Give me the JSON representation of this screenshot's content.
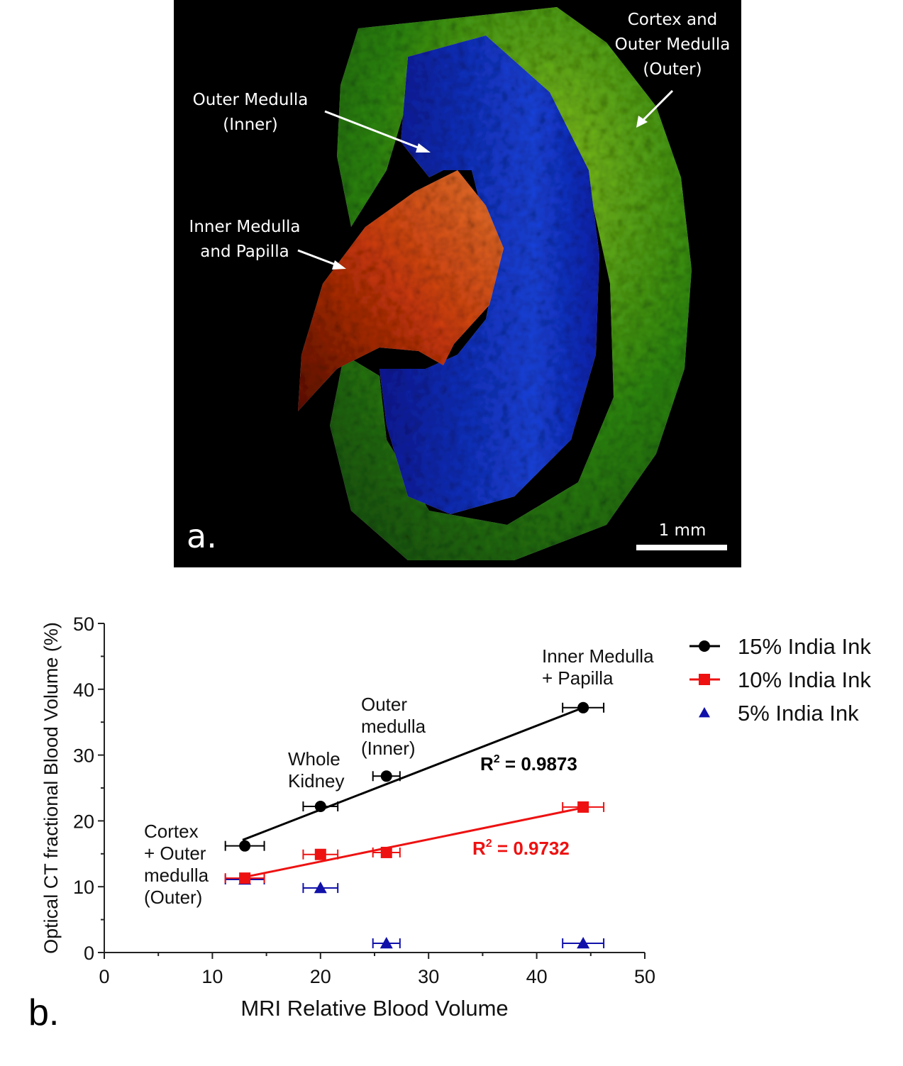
{
  "panel_a": {
    "letter": "a.",
    "scale_bar": "1 mm",
    "labels": {
      "cortex_line1": "Cortex and",
      "cortex_line2": "Outer Medulla",
      "cortex_line3": "(Outer)",
      "om_line1": "Outer Medulla",
      "om_line2": "(Inner)",
      "im_line1": "Inner Medulla",
      "im_line2": "and Papilla"
    },
    "colors": {
      "cortex": "#3a9a1a",
      "outer_medulla": "#1428c8",
      "inner_medulla": "#d84010"
    }
  },
  "panel_b": {
    "letter": "b."
  },
  "chart_data": {
    "type": "scatter",
    "xlabel": "MRI Relative Blood Volume",
    "ylabel": "Optical CT fractional Blood  Volume (%)",
    "xlim": [
      0,
      50
    ],
    "ylim": [
      0,
      50
    ],
    "xticks": [
      "0",
      "10",
      "20",
      "30",
      "40",
      "50"
    ],
    "yticks": [
      "0",
      "10",
      "20",
      "30",
      "40",
      "50"
    ],
    "legend_position": "right",
    "series": [
      {
        "name": "15% India Ink",
        "color": "#000000",
        "marker": "circle",
        "x": [
          13.0,
          20.0,
          26.1,
          44.3
        ],
        "y": [
          16.2,
          22.2,
          26.8,
          37.2
        ],
        "xerr": [
          1.8,
          1.6,
          1.25,
          1.9
        ],
        "fit": {
          "x": [
            12.8,
            44.3
          ],
          "y": [
            17.1,
            37.2
          ],
          "r2_label": "R",
          "r2_value": " = 0.9873"
        }
      },
      {
        "name": "10% India Ink",
        "color": "#ee1111",
        "marker": "square",
        "x": [
          13.0,
          20.0,
          26.1,
          44.3
        ],
        "y": [
          11.3,
          14.9,
          15.2,
          22.1
        ],
        "xerr": [
          1.8,
          1.6,
          1.25,
          1.9
        ],
        "fit": {
          "x": [
            12.8,
            44.3
          ],
          "y": [
            11.4,
            22.0
          ],
          "r2_label": "R",
          "r2_value": " = 0.9732"
        }
      },
      {
        "name": "5% India Ink",
        "color": "#1111aa",
        "marker": "triangle",
        "x": [
          13.0,
          20.0,
          26.1,
          44.3
        ],
        "y": [
          11.1,
          9.8,
          1.4,
          1.4
        ],
        "xerr": [
          1.8,
          1.6,
          1.25,
          1.9
        ]
      }
    ],
    "annotations": [
      {
        "lines": [
          "Cortex",
          "+ Outer",
          "medulla",
          "(Outer)"
        ]
      },
      {
        "lines": [
          "Whole",
          "Kidney"
        ]
      },
      {
        "lines": [
          "Outer",
          "medulla",
          "(Inner)"
        ]
      },
      {
        "lines": [
          "Inner Medulla",
          "+ Papilla"
        ]
      }
    ]
  }
}
